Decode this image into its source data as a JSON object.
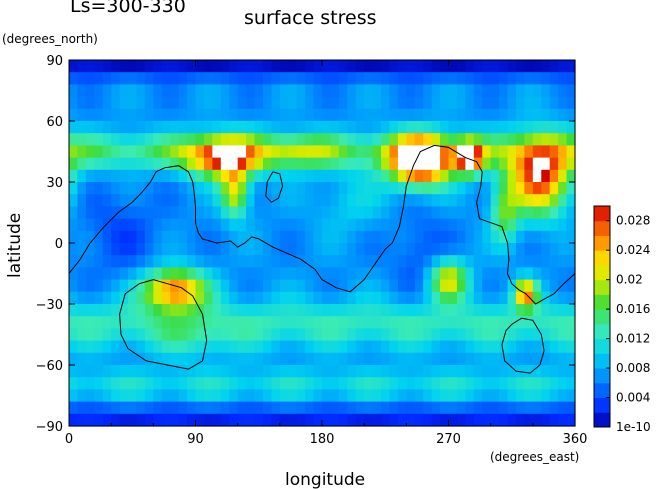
{
  "chart_data": {
    "type": "heatmap",
    "title_left": "Ls=300-330",
    "title": "surface stress",
    "xlabel": "longitude",
    "ylabel": "latitude",
    "xunit": "(degrees_east)",
    "yunit": "(degrees_north)",
    "xlim": [
      0,
      360
    ],
    "ylim": [
      -90,
      90
    ],
    "xticks": [
      "0",
      "90",
      "180",
      "270",
      "360"
    ],
    "yticks": [
      "90",
      "60",
      "30",
      "0",
      "-30",
      "-60",
      "-90"
    ],
    "colorbar": {
      "min": 0,
      "max": 0.03,
      "labels": [
        "0.028",
        "0.024",
        "0.02",
        "0.016",
        "0.012",
        "0.008",
        "0.004",
        "1e-10"
      ]
    },
    "field": {
      "base": 0.007,
      "lat_band_blobs": [
        {
          "lat": 45,
          "width": 9,
          "value": 0.008
        },
        {
          "lat": -40,
          "width": 12,
          "value": 0.006
        },
        {
          "lat": -70,
          "width": 8,
          "value": 0.004
        },
        {
          "lat": 87,
          "width": 6,
          "value": -0.006
        },
        {
          "lat": -86,
          "width": 6,
          "value": -0.005
        }
      ],
      "blobs": [
        {
          "lon": 110,
          "lat": 42,
          "rlon": 25,
          "rlat": 10,
          "value": 0.019
        },
        {
          "lon": 118,
          "lat": 25,
          "rlon": 10,
          "rlat": 12,
          "value": 0.014
        },
        {
          "lon": 165,
          "lat": 45,
          "rlon": 25,
          "rlat": 8,
          "value": 0.006
        },
        {
          "lon": 250,
          "lat": 40,
          "rlon": 22,
          "rlat": 12,
          "value": 0.026
        },
        {
          "lon": 285,
          "lat": 42,
          "rlon": 10,
          "rlat": 8,
          "value": 0.02
        },
        {
          "lon": 335,
          "lat": 33,
          "rlon": 22,
          "rlat": 18,
          "value": 0.022
        },
        {
          "lon": 75,
          "lat": -23,
          "rlon": 22,
          "rlat": 10,
          "value": 0.02
        },
        {
          "lon": 270,
          "lat": -18,
          "rlon": 14,
          "rlat": 10,
          "value": 0.014
        },
        {
          "lon": 325,
          "lat": -25,
          "rlon": 8,
          "rlat": 7,
          "value": 0.018
        },
        {
          "lon": 90,
          "lat": -48,
          "rlon": 28,
          "rlat": 10,
          "value": 0.003
        },
        {
          "lon": 35,
          "lat": 5,
          "rlon": 30,
          "rlat": 22,
          "value": -0.003
        },
        {
          "lon": 250,
          "lat": -5,
          "rlon": 20,
          "rlat": 20,
          "value": -0.003
        },
        {
          "lon": 200,
          "lat": 20,
          "rlon": 25,
          "rlat": 15,
          "value": 0.003
        },
        {
          "lon": 310,
          "lat": 15,
          "rlon": 10,
          "rlat": 15,
          "value": 0.009
        }
      ]
    },
    "contours": [
      [
        [
          0,
          -15
        ],
        [
          8,
          -8
        ],
        [
          15,
          0
        ],
        [
          25,
          8
        ],
        [
          35,
          15
        ],
        [
          45,
          20
        ],
        [
          52,
          25
        ],
        [
          58,
          30
        ],
        [
          62,
          35
        ],
        [
          68,
          37
        ],
        [
          78,
          38
        ],
        [
          85,
          35
        ],
        [
          88,
          30
        ],
        [
          89,
          25
        ],
        [
          90,
          18
        ],
        [
          90,
          10
        ],
        [
          92,
          5
        ],
        [
          95,
          2
        ],
        [
          105,
          0
        ],
        [
          115,
          1
        ],
        [
          120,
          -2
        ],
        [
          125,
          0
        ],
        [
          130,
          3
        ],
        [
          135,
          2
        ],
        [
          145,
          -2
        ],
        [
          155,
          -5
        ],
        [
          165,
          -8
        ],
        [
          175,
          -13
        ],
        [
          180,
          -18
        ],
        [
          190,
          -22
        ],
        [
          200,
          -24
        ],
        [
          210,
          -18
        ],
        [
          215,
          -13
        ],
        [
          220,
          -8
        ],
        [
          225,
          -3
        ],
        [
          230,
          0
        ],
        [
          235,
          8
        ],
        [
          238,
          18
        ],
        [
          240,
          28
        ],
        [
          245,
          38
        ],
        [
          250,
          45
        ],
        [
          260,
          48
        ],
        [
          270,
          47
        ],
        [
          282,
          42
        ],
        [
          290,
          40
        ],
        [
          294,
          35
        ],
        [
          293,
          28
        ],
        [
          290,
          20
        ],
        [
          292,
          12
        ],
        [
          300,
          10
        ],
        [
          308,
          8
        ],
        [
          312,
          0
        ],
        [
          313,
          -8
        ],
        [
          312,
          -15
        ],
        [
          315,
          -20
        ],
        [
          320,
          -23
        ],
        [
          325,
          -25
        ],
        [
          332,
          -30
        ],
        [
          337,
          -28
        ],
        [
          345,
          -25
        ],
        [
          352,
          -20
        ],
        [
          360,
          -15
        ]
      ],
      [
        [
          40,
          -25
        ],
        [
          50,
          -20
        ],
        [
          60,
          -18
        ],
        [
          70,
          -20
        ],
        [
          80,
          -22
        ],
        [
          88,
          -26
        ],
        [
          95,
          -35
        ],
        [
          98,
          -48
        ],
        [
          95,
          -58
        ],
        [
          85,
          -62
        ],
        [
          70,
          -60
        ],
        [
          55,
          -58
        ],
        [
          42,
          -52
        ],
        [
          37,
          -45
        ],
        [
          36,
          -35
        ],
        [
          40,
          -25
        ]
      ],
      [
        [
          315,
          -40
        ],
        [
          322,
          -37
        ],
        [
          330,
          -38
        ],
        [
          336,
          -45
        ],
        [
          338,
          -53
        ],
        [
          335,
          -60
        ],
        [
          328,
          -64
        ],
        [
          318,
          -63
        ],
        [
          310,
          -58
        ],
        [
          308,
          -50
        ],
        [
          311,
          -43
        ],
        [
          315,
          -40
        ]
      ],
      [
        [
          145,
          35
        ],
        [
          150,
          34
        ],
        [
          152,
          28
        ],
        [
          149,
          22
        ],
        [
          144,
          20
        ],
        [
          140,
          23
        ],
        [
          141,
          30
        ],
        [
          145,
          35
        ]
      ]
    ]
  }
}
